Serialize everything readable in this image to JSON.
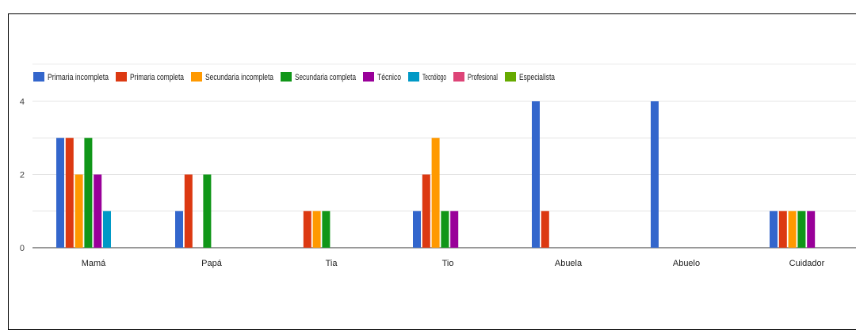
{
  "chart_data": {
    "type": "bar",
    "categories": [
      "Mamá",
      "Papá",
      "Tia",
      "Tio",
      "Abuela",
      "Abuelo",
      "Cuidador"
    ],
    "series": [
      {
        "name": "Primaria incompleta",
        "color": "#3366cc",
        "values": [
          3,
          1,
          0,
          1,
          4,
          4,
          1
        ]
      },
      {
        "name": "Primaria completa",
        "color": "#dc3912",
        "values": [
          3,
          2,
          1,
          2,
          1,
          0,
          1
        ]
      },
      {
        "name": "Secundaria incompleta",
        "color": "#ff9900",
        "values": [
          2,
          0,
          1,
          3,
          0,
          0,
          1
        ]
      },
      {
        "name": "Secundaria completa",
        "color": "#109618",
        "values": [
          3,
          2,
          1,
          1,
          0,
          0,
          1
        ]
      },
      {
        "name": "Técnico",
        "color": "#990099",
        "values": [
          2,
          0,
          0,
          1,
          0,
          0,
          1
        ]
      },
      {
        "name": "Tecnólogo",
        "color": "#0099c6",
        "values": [
          1,
          0,
          0,
          0,
          0,
          0,
          0
        ]
      },
      {
        "name": "Profesional",
        "color": "#dd4477",
        "values": [
          0,
          0,
          0,
          0,
          0,
          0,
          0
        ]
      },
      {
        "name": "Especialista",
        "color": "#66aa00",
        "values": [
          0,
          0,
          0,
          0,
          0,
          0,
          0
        ]
      }
    ],
    "yticks": [
      0,
      2,
      4
    ],
    "ylim": [
      0,
      4
    ],
    "gridlines": [
      0,
      1,
      2,
      3,
      4
    ],
    "grid": true,
    "legend_position": "top-left",
    "title": "",
    "xlabel": "",
    "ylabel": ""
  }
}
